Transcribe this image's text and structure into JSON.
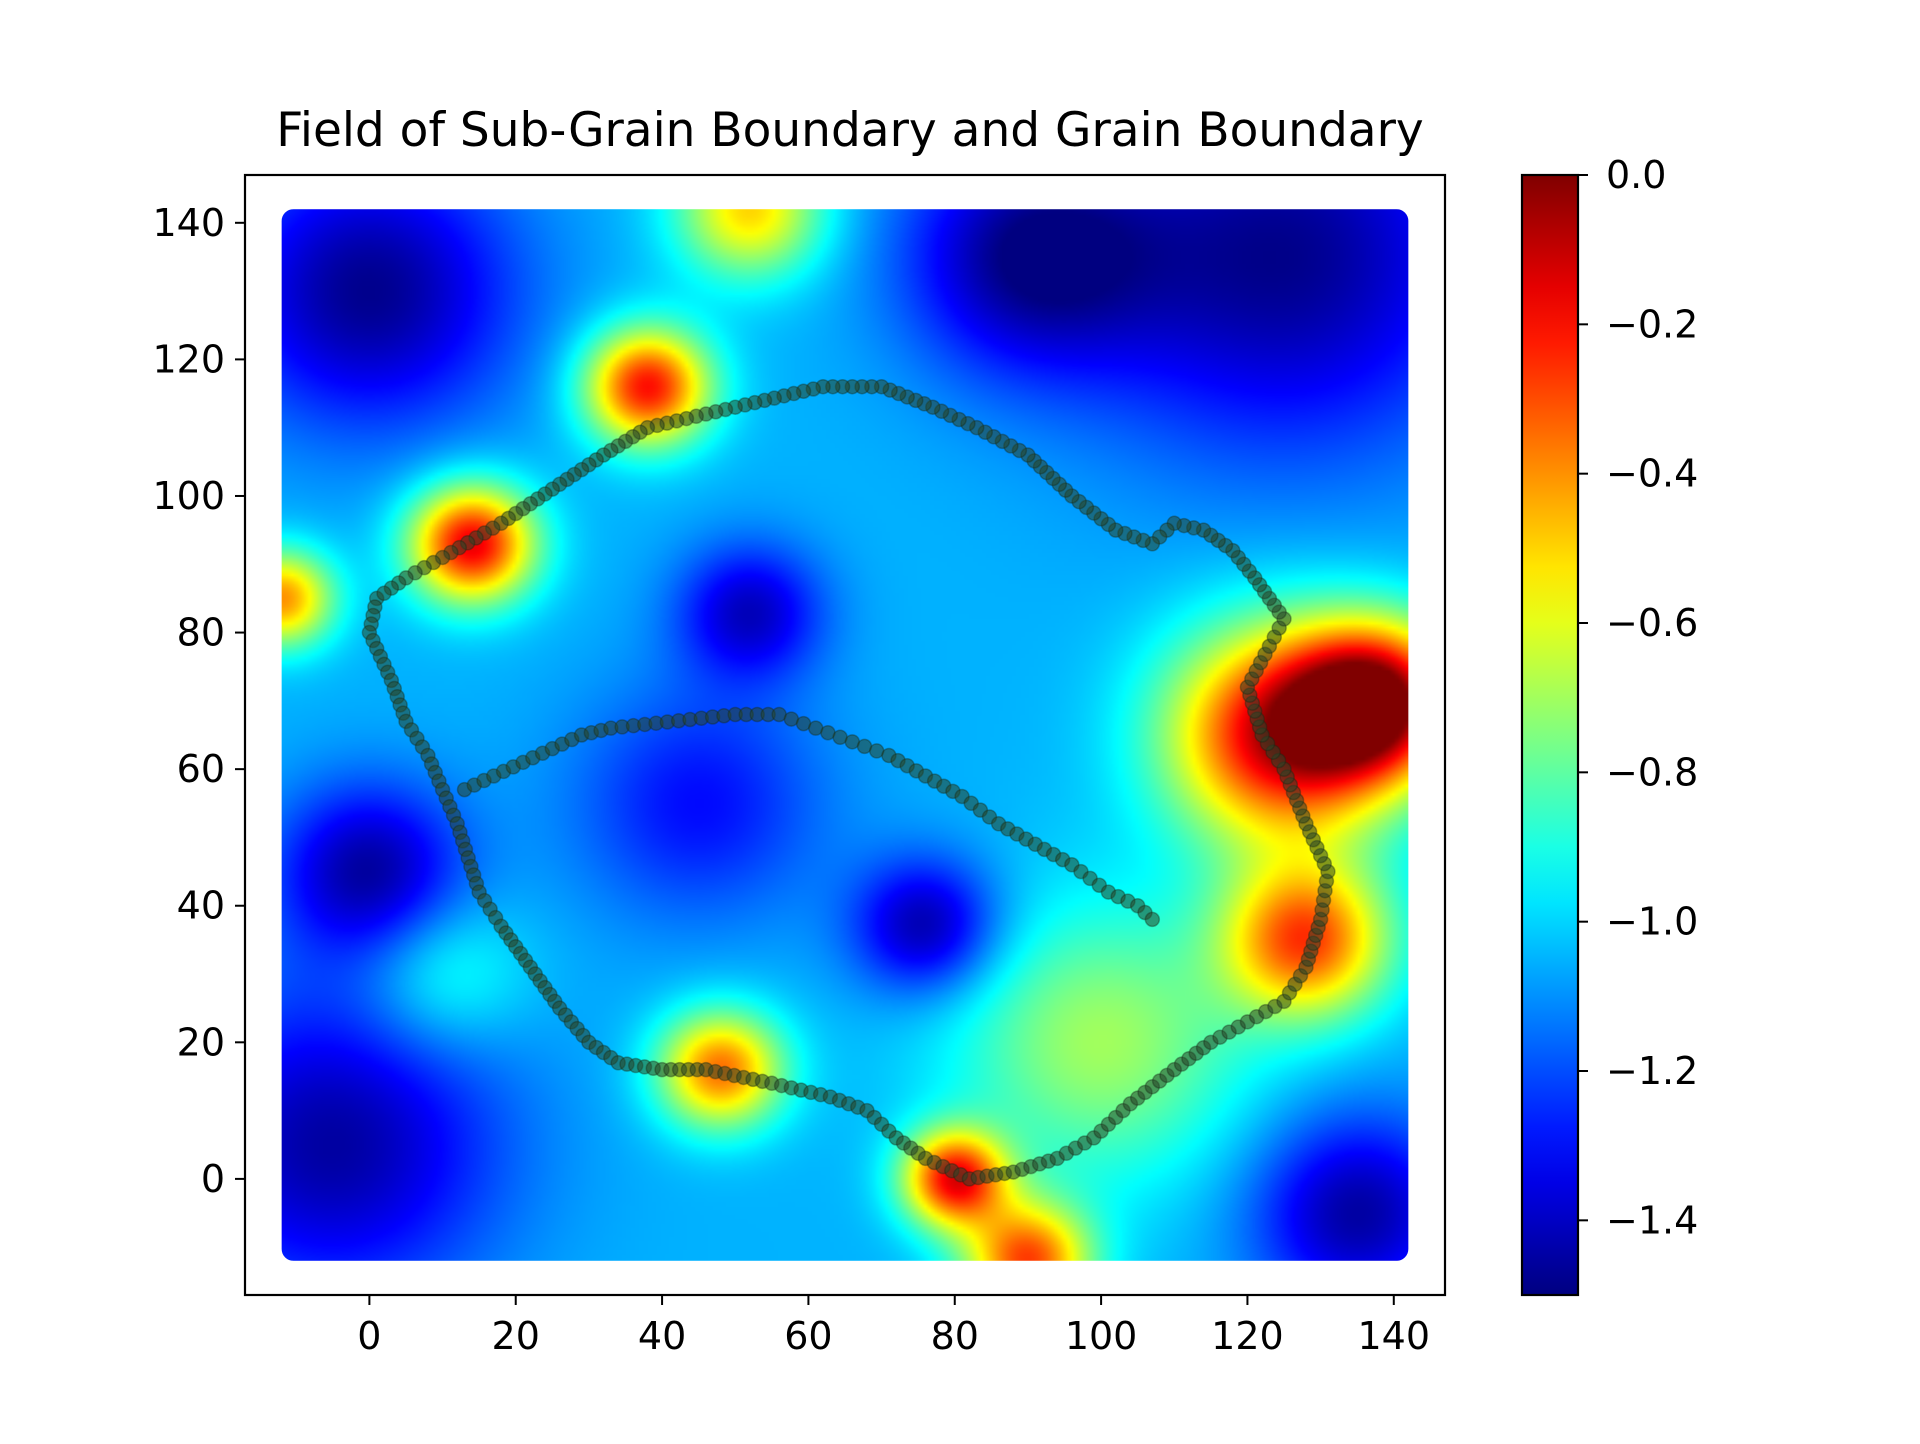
{
  "chart_data": {
    "type": "heatmap",
    "title": "Field of Sub-Grain Boundary and Grain Boundary",
    "xlabel": "",
    "ylabel": "",
    "xlim": [
      -17,
      147
    ],
    "ylim": [
      -17,
      147
    ],
    "xticks": [
      0,
      20,
      40,
      60,
      80,
      100,
      120,
      140
    ],
    "yticks": [
      0,
      20,
      40,
      60,
      80,
      100,
      120,
      140
    ],
    "x_tick_labels": [
      "0",
      "20",
      "40",
      "60",
      "80",
      "100",
      "120",
      "140"
    ],
    "y_tick_labels": [
      "0",
      "20",
      "40",
      "60",
      "80",
      "100",
      "120",
      "140"
    ],
    "field_extent": {
      "x": [
        -12,
        142
      ],
      "y": [
        -12,
        142
      ]
    },
    "colormap": "jet",
    "colorbar": {
      "range": [
        -1.5,
        0.0
      ],
      "ticks": [
        0.0,
        -0.2,
        -0.4,
        -0.6,
        -0.8,
        -1.0,
        -1.2,
        -1.4
      ],
      "tick_labels": [
        "0.0",
        "−0.2",
        "−0.4",
        "−0.6",
        "−0.8",
        "−1.0",
        "−1.2",
        "−1.4"
      ]
    },
    "field_features": [
      {
        "x": 0,
        "y": 130,
        "value": -1.48,
        "sigma": 14
      },
      {
        "x": 125,
        "y": 135,
        "value": -1.48,
        "sigma": 20
      },
      {
        "x": 90,
        "y": 135,
        "value": -1.45,
        "sigma": 12
      },
      {
        "x": -5,
        "y": 5,
        "value": -1.45,
        "sigma": 16
      },
      {
        "x": 0,
        "y": 45,
        "value": -1.45,
        "sigma": 9
      },
      {
        "x": 135,
        "y": -5,
        "value": -1.45,
        "sigma": 10
      },
      {
        "x": 52,
        "y": 83,
        "value": -1.4,
        "sigma": 7
      },
      {
        "x": 76,
        "y": 37,
        "value": -1.45,
        "sigma": 7
      },
      {
        "x": 45,
        "y": 55,
        "value": -1.3,
        "sigma": 12
      },
      {
        "x": 125,
        "y": 65,
        "value": -0.1,
        "sigma": 11
      },
      {
        "x": 138,
        "y": 70,
        "value": -0.15,
        "sigma": 8
      },
      {
        "x": 128,
        "y": 35,
        "value": -0.3,
        "sigma": 8
      },
      {
        "x": 14,
        "y": 93,
        "value": -0.15,
        "sigma": 6
      },
      {
        "x": 38,
        "y": 116,
        "value": -0.2,
        "sigma": 6
      },
      {
        "x": 48,
        "y": 16,
        "value": -0.35,
        "sigma": 6
      },
      {
        "x": 80,
        "y": 0,
        "value": -0.2,
        "sigma": 5
      },
      {
        "x": 90,
        "y": -12,
        "value": -0.3,
        "sigma": 6
      },
      {
        "x": 52,
        "y": 142,
        "value": -0.5,
        "sigma": 7
      },
      {
        "x": -12,
        "y": 85,
        "value": -0.4,
        "sigma": 5
      },
      {
        "x": 100,
        "y": 20,
        "value": -0.7,
        "sigma": 14
      },
      {
        "x": 10,
        "y": 30,
        "value": -0.85,
        "sigma": 8
      }
    ],
    "grain_boundary": [
      [
        1,
        85
      ],
      [
        0,
        80
      ],
      [
        3,
        73
      ],
      [
        5,
        67
      ],
      [
        8,
        62
      ],
      [
        12,
        52
      ],
      [
        15,
        42
      ],
      [
        18,
        37
      ],
      [
        22,
        31
      ],
      [
        26,
        25
      ],
      [
        30,
        20
      ],
      [
        34,
        17
      ],
      [
        40,
        16
      ],
      [
        46,
        16
      ],
      [
        55,
        14
      ],
      [
        63,
        12
      ],
      [
        68,
        10
      ],
      [
        72,
        6
      ],
      [
        76,
        3
      ],
      [
        82,
        0
      ],
      [
        88,
        1
      ],
      [
        94,
        3
      ],
      [
        99,
        6
      ],
      [
        104,
        11
      ],
      [
        110,
        16
      ],
      [
        115,
        20
      ],
      [
        120,
        23
      ],
      [
        125,
        26
      ],
      [
        128,
        31
      ],
      [
        130,
        38
      ],
      [
        131,
        45
      ],
      [
        128,
        52
      ],
      [
        125,
        60
      ],
      [
        122,
        65
      ],
      [
        120,
        72
      ],
      [
        123,
        78
      ],
      [
        125,
        82
      ],
      [
        121,
        88
      ],
      [
        118,
        92
      ],
      [
        114,
        95
      ],
      [
        110,
        96
      ],
      [
        107,
        93
      ],
      [
        102,
        95
      ],
      [
        96,
        100
      ],
      [
        90,
        106
      ],
      [
        83,
        110
      ],
      [
        77,
        113
      ],
      [
        70,
        116
      ],
      [
        62,
        116
      ],
      [
        54,
        114
      ],
      [
        46,
        112
      ],
      [
        38,
        110
      ],
      [
        32,
        106
      ],
      [
        25,
        101
      ],
      [
        18,
        96
      ],
      [
        10,
        91
      ],
      [
        5,
        88
      ],
      [
        1,
        85
      ]
    ],
    "sub_grain_boundary": [
      [
        13,
        57
      ],
      [
        17,
        59
      ],
      [
        21,
        61
      ],
      [
        25,
        63
      ],
      [
        29,
        65
      ],
      [
        33,
        66
      ],
      [
        50,
        68
      ],
      [
        56,
        68
      ],
      [
        61,
        66
      ],
      [
        66,
        64
      ],
      [
        71,
        62
      ],
      [
        76,
        59
      ],
      [
        81,
        56
      ],
      [
        86,
        52
      ],
      [
        91,
        49
      ],
      [
        96,
        46
      ],
      [
        101,
        42
      ],
      [
        105,
        40
      ],
      [
        108,
        37
      ]
    ]
  }
}
